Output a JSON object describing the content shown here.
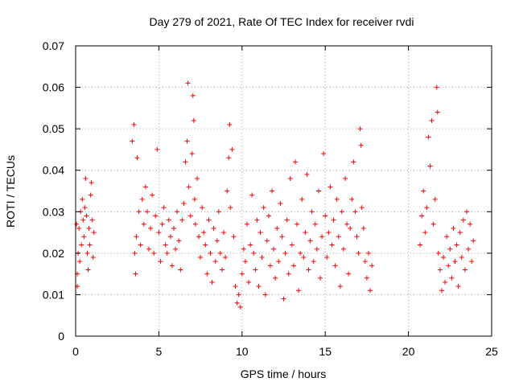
{
  "chart_data": {
    "type": "scatter",
    "title": "Day 279 of 2021, Rate Of TEC Index for receiver rvdi",
    "xlabel": "GPS time / hours",
    "ylabel": "ROTI / TECUs",
    "xlim": [
      0,
      25
    ],
    "ylim": [
      0,
      0.07
    ],
    "x_ticks": [
      {
        "value": 0,
        "label": "0"
      },
      {
        "value": 5,
        "label": "5"
      },
      {
        "value": 10,
        "label": "10"
      },
      {
        "value": 15,
        "label": "15"
      },
      {
        "value": 20,
        "label": "20"
      },
      {
        "value": 25,
        "label": "25"
      }
    ],
    "y_ticks": [
      {
        "value": 0,
        "label": "0"
      },
      {
        "value": 0.01,
        "label": "0.01"
      },
      {
        "value": 0.02,
        "label": "0.02"
      },
      {
        "value": 0.03,
        "label": "0.03"
      },
      {
        "value": 0.04,
        "label": "0.04"
      },
      {
        "value": 0.05,
        "label": "0.05"
      },
      {
        "value": 0.06,
        "label": "0.06"
      },
      {
        "value": 0.07,
        "label": "0.07"
      }
    ],
    "grid": true,
    "marker": "plus",
    "marker_color": "#ff0000",
    "series": [
      {
        "name": "",
        "points": [
          [
            0.05,
            0.027
          ],
          [
            0.1,
            0.015
          ],
          [
            0.1,
            0.012
          ],
          [
            0.15,
            0.02
          ],
          [
            0.2,
            0.026
          ],
          [
            0.25,
            0.018
          ],
          [
            0.3,
            0.03
          ],
          [
            0.35,
            0.022
          ],
          [
            0.4,
            0.033
          ],
          [
            0.45,
            0.028
          ],
          [
            0.5,
            0.024
          ],
          [
            0.55,
            0.031
          ],
          [
            0.6,
            0.038
          ],
          [
            0.65,
            0.029
          ],
          [
            0.7,
            0.02
          ],
          [
            0.75,
            0.016
          ],
          [
            0.8,
            0.026
          ],
          [
            0.85,
            0.022
          ],
          [
            0.9,
            0.034
          ],
          [
            0.95,
            0.037
          ],
          [
            1.0,
            0.028
          ],
          [
            1.05,
            0.019
          ],
          [
            1.1,
            0.025
          ],
          [
            3.4,
            0.047
          ],
          [
            3.5,
            0.051
          ],
          [
            3.55,
            0.02
          ],
          [
            3.6,
            0.015
          ],
          [
            3.65,
            0.024
          ],
          [
            3.7,
            0.043
          ],
          [
            3.8,
            0.03
          ],
          [
            3.9,
            0.022
          ],
          [
            4.0,
            0.033
          ],
          [
            4.1,
            0.027
          ],
          [
            4.2,
            0.036
          ],
          [
            4.3,
            0.03
          ],
          [
            4.4,
            0.021
          ],
          [
            4.5,
            0.026
          ],
          [
            4.6,
            0.034
          ],
          [
            4.7,
            0.02
          ],
          [
            4.8,
            0.029
          ],
          [
            4.9,
            0.045
          ],
          [
            5.0,
            0.025
          ],
          [
            5.1,
            0.018
          ],
          [
            5.2,
            0.027
          ],
          [
            5.3,
            0.031
          ],
          [
            5.4,
            0.022
          ],
          [
            5.5,
            0.02
          ],
          [
            5.6,
            0.028
          ],
          [
            5.7,
            0.024
          ],
          [
            5.8,
            0.017
          ],
          [
            5.9,
            0.026
          ],
          [
            6.0,
            0.021
          ],
          [
            6.1,
            0.03
          ],
          [
            6.2,
            0.023
          ],
          [
            6.3,
            0.016
          ],
          [
            6.4,
            0.028
          ],
          [
            6.5,
            0.032
          ],
          [
            6.6,
            0.042
          ],
          [
            6.7,
            0.047
          ],
          [
            6.75,
            0.061
          ],
          [
            6.8,
            0.036
          ],
          [
            6.9,
            0.029
          ],
          [
            7.0,
            0.044
          ],
          [
            7.05,
            0.058
          ],
          [
            7.1,
            0.052
          ],
          [
            7.15,
            0.033
          ],
          [
            7.2,
            0.027
          ],
          [
            7.3,
            0.038
          ],
          [
            7.4,
            0.024
          ],
          [
            7.5,
            0.019
          ],
          [
            7.6,
            0.031
          ],
          [
            7.7,
            0.025
          ],
          [
            7.8,
            0.022
          ],
          [
            7.9,
            0.015
          ],
          [
            8.0,
            0.028
          ],
          [
            8.1,
            0.02
          ],
          [
            8.2,
            0.013
          ],
          [
            8.3,
            0.026
          ],
          [
            8.4,
            0.018
          ],
          [
            8.5,
            0.023
          ],
          [
            8.6,
            0.03
          ],
          [
            8.7,
            0.02
          ],
          [
            8.8,
            0.016
          ],
          [
            8.9,
            0.025
          ],
          [
            9.0,
            0.019
          ],
          [
            9.1,
            0.035
          ],
          [
            9.2,
            0.043
          ],
          [
            9.25,
            0.051
          ],
          [
            9.3,
            0.031
          ],
          [
            9.4,
            0.045
          ],
          [
            9.5,
            0.024
          ],
          [
            9.6,
            0.012
          ],
          [
            9.7,
            0.008
          ],
          [
            9.8,
            0.01
          ],
          [
            9.9,
            0.007
          ],
          [
            10.0,
            0.015
          ],
          [
            10.1,
            0.021
          ],
          [
            10.2,
            0.018
          ],
          [
            10.3,
            0.027
          ],
          [
            10.4,
            0.013
          ],
          [
            10.5,
            0.022
          ],
          [
            10.6,
            0.034
          ],
          [
            10.7,
            0.02
          ],
          [
            10.8,
            0.016
          ],
          [
            10.9,
            0.028
          ],
          [
            11.0,
            0.012
          ],
          [
            11.1,
            0.025
          ],
          [
            11.2,
            0.019
          ],
          [
            11.3,
            0.031
          ],
          [
            11.4,
            0.01
          ],
          [
            11.5,
            0.023
          ],
          [
            11.6,
            0.029
          ],
          [
            11.7,
            0.017
          ],
          [
            11.8,
            0.035
          ],
          [
            11.9,
            0.021
          ],
          [
            12.0,
            0.014
          ],
          [
            12.1,
            0.026
          ],
          [
            12.2,
            0.018
          ],
          [
            12.3,
            0.032
          ],
          [
            12.4,
            0.024
          ],
          [
            12.5,
            0.009
          ],
          [
            12.6,
            0.02
          ],
          [
            12.7,
            0.028
          ],
          [
            12.8,
            0.015
          ],
          [
            12.9,
            0.038
          ],
          [
            13.0,
            0.022
          ],
          [
            13.1,
            0.017
          ],
          [
            13.2,
            0.042
          ],
          [
            13.3,
            0.027
          ],
          [
            13.4,
            0.011
          ],
          [
            13.5,
            0.02
          ],
          [
            13.6,
            0.033
          ],
          [
            13.7,
            0.019
          ],
          [
            13.8,
            0.025
          ],
          [
            13.9,
            0.039
          ],
          [
            14.0,
            0.016
          ],
          [
            14.1,
            0.023
          ],
          [
            14.2,
            0.03
          ],
          [
            14.3,
            0.018
          ],
          [
            14.4,
            0.027
          ],
          [
            14.5,
            0.021
          ],
          [
            14.6,
            0.035
          ],
          [
            14.7,
            0.014
          ],
          [
            14.8,
            0.024
          ],
          [
            14.9,
            0.044
          ],
          [
            15.0,
            0.029
          ],
          [
            15.1,
            0.019
          ],
          [
            15.2,
            0.025
          ],
          [
            15.3,
            0.036
          ],
          [
            15.4,
            0.022
          ],
          [
            15.5,
            0.028
          ],
          [
            15.6,
            0.017
          ],
          [
            15.7,
            0.033
          ],
          [
            15.8,
            0.024
          ],
          [
            15.9,
            0.012
          ],
          [
            16.0,
            0.03
          ],
          [
            16.1,
            0.021
          ],
          [
            16.2,
            0.038
          ],
          [
            16.3,
            0.027
          ],
          [
            16.4,
            0.015
          ],
          [
            16.5,
            0.026
          ],
          [
            16.6,
            0.033
          ],
          [
            16.7,
            0.042
          ],
          [
            16.8,
            0.03
          ],
          [
            16.9,
            0.024
          ],
          [
            17.0,
            0.02
          ],
          [
            17.1,
            0.05
          ],
          [
            17.15,
            0.046
          ],
          [
            17.2,
            0.031
          ],
          [
            17.3,
            0.026
          ],
          [
            17.4,
            0.018
          ],
          [
            17.5,
            0.014
          ],
          [
            17.6,
            0.02
          ],
          [
            17.7,
            0.011
          ],
          [
            17.8,
            0.017
          ],
          [
            20.7,
            0.022
          ],
          [
            20.8,
            0.029
          ],
          [
            20.9,
            0.035
          ],
          [
            21.0,
            0.025
          ],
          [
            21.1,
            0.031
          ],
          [
            21.2,
            0.048
          ],
          [
            21.3,
            0.041
          ],
          [
            21.4,
            0.052
          ],
          [
            21.5,
            0.027
          ],
          [
            21.6,
            0.033
          ],
          [
            21.7,
            0.06
          ],
          [
            21.75,
            0.054
          ],
          [
            21.8,
            0.02
          ],
          [
            21.9,
            0.016
          ],
          [
            22.0,
            0.011
          ],
          [
            22.1,
            0.019
          ],
          [
            22.2,
            0.013
          ],
          [
            22.3,
            0.024
          ],
          [
            22.4,
            0.017
          ],
          [
            22.5,
            0.021
          ],
          [
            22.6,
            0.014
          ],
          [
            22.7,
            0.026
          ],
          [
            22.8,
            0.018
          ],
          [
            22.9,
            0.022
          ],
          [
            23.0,
            0.012
          ],
          [
            23.1,
            0.025
          ],
          [
            23.2,
            0.019
          ],
          [
            23.3,
            0.028
          ],
          [
            23.4,
            0.016
          ],
          [
            23.5,
            0.03
          ],
          [
            23.6,
            0.021
          ],
          [
            23.7,
            0.027
          ],
          [
            23.8,
            0.018
          ],
          [
            23.9,
            0.023
          ]
        ]
      }
    ]
  }
}
